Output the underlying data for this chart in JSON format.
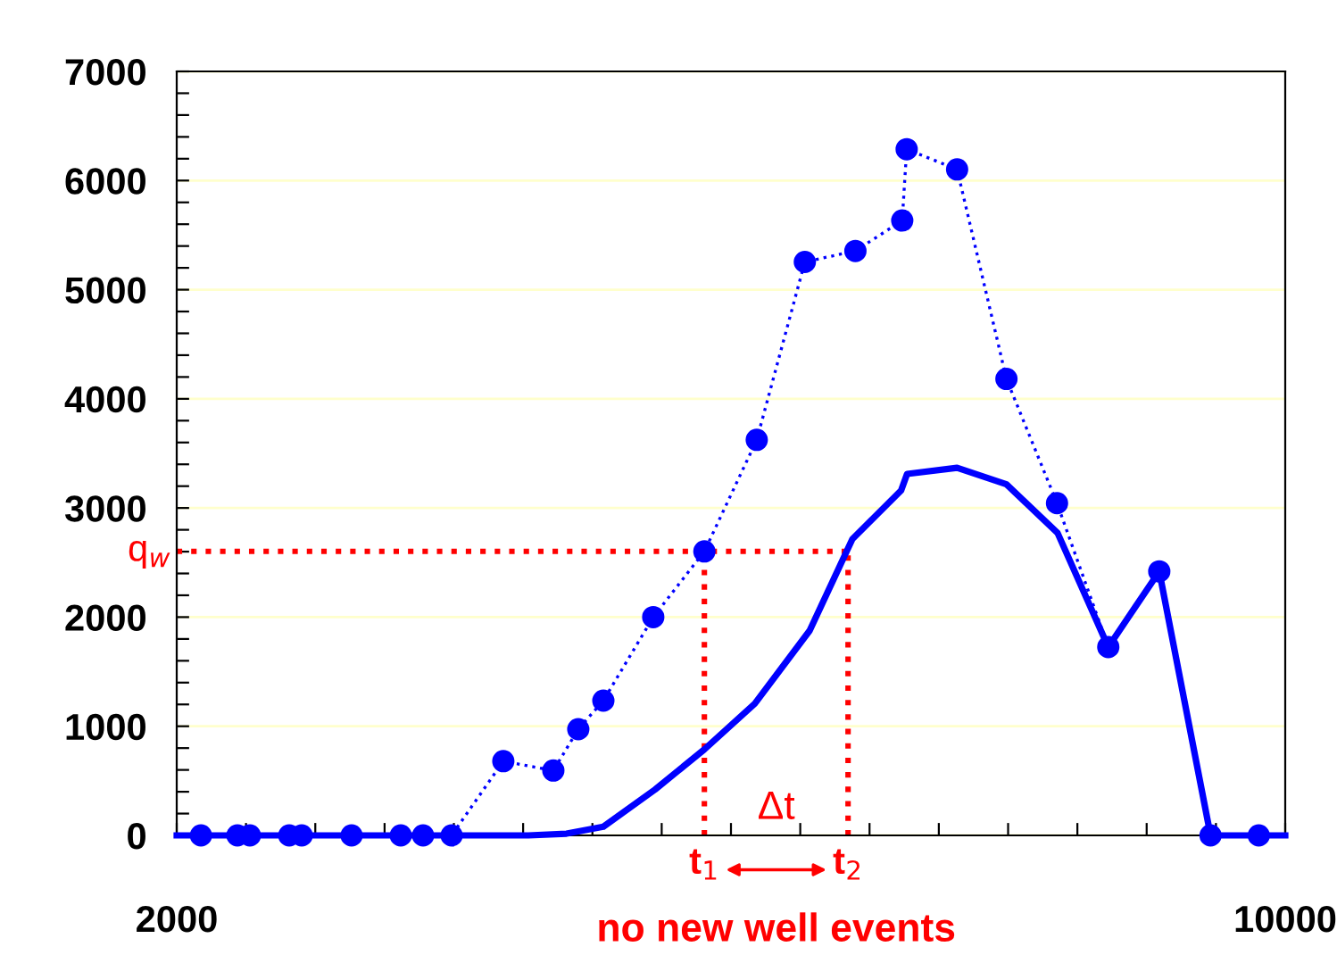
{
  "chart_data": {
    "type": "line",
    "series": [
      {
        "color": "#0000ff",
        "line_style": "dotted",
        "marker": "circle",
        "x": [
          2175,
          2438,
          2528,
          2812,
          2902,
          3262,
          3617,
          3778,
          3984,
          4357,
          4718,
          4898,
          5079,
          5439,
          5808,
          6186,
          6533,
          6898,
          7236,
          7268,
          7632,
          7988,
          8353,
          8723,
          9091,
          9461,
          9809
        ],
        "values": [
          0,
          0,
          0,
          0,
          0,
          0,
          0,
          0,
          0,
          680,
          594,
          973,
          1235,
          2000,
          2602,
          3624,
          5254,
          5355,
          5634,
          6287,
          6102,
          4182,
          3044,
          1726,
          2419,
          0,
          0
        ]
      },
      {
        "color": "#0000ff",
        "line_style": "solid",
        "marker": "none",
        "x": [
          2000,
          4538,
          4813,
          5079,
          5452,
          5808,
          6172,
          6568,
          6876,
          7228,
          7271,
          7632,
          7988,
          8357,
          8723,
          9091,
          9461,
          10000
        ],
        "values": [
          0,
          0,
          16,
          80,
          420,
          788,
          1207,
          1877,
          2715,
          3161,
          3312,
          3368,
          3217,
          2771,
          1726,
          2419,
          0,
          0
        ]
      }
    ],
    "xlim": [
      2000,
      10000
    ],
    "xticks": [
      2000,
      {
        "value": 2500,
        "label": null
      },
      {
        "value": 3000,
        "label": null
      },
      {
        "value": 3500,
        "label": null
      },
      {
        "value": 4000,
        "label": null
      },
      {
        "value": 4500,
        "label": null
      },
      {
        "value": 5000,
        "label": null
      },
      {
        "value": 5500,
        "label": null
      },
      {
        "value": 6000,
        "label": null
      },
      {
        "value": 6500,
        "label": null
      },
      {
        "value": 7000,
        "label": null
      },
      {
        "value": 7500,
        "label": null
      },
      {
        "value": 8000,
        "label": null
      },
      {
        "value": 8500,
        "label": null
      },
      {
        "value": 9000,
        "label": null
      },
      {
        "value": 9500,
        "label": null
      },
      10000
    ],
    "ylim": [
      0,
      7000
    ],
    "yticks": [
      0,
      {
        "value": 200,
        "label": null
      },
      {
        "value": 400,
        "label": null
      },
      {
        "value": 600,
        "label": null
      },
      {
        "value": 800,
        "label": null
      },
      1000,
      {
        "value": 1200,
        "label": null
      },
      {
        "value": 1400,
        "label": null
      },
      {
        "value": 1600,
        "label": null
      },
      {
        "value": 1800,
        "label": null
      },
      2000,
      {
        "value": 2200,
        "label": null
      },
      {
        "value": 2400,
        "label": null
      },
      {
        "value": 2600,
        "label": null
      },
      {
        "value": 2800,
        "label": null
      },
      3000,
      {
        "value": 3200,
        "label": null
      },
      {
        "value": 3400,
        "label": null
      },
      {
        "value": 3600,
        "label": null
      },
      {
        "value": 3800,
        "label": null
      },
      4000,
      {
        "value": 4200,
        "label": null
      },
      {
        "value": 4400,
        "label": null
      },
      {
        "value": 4600,
        "label": null
      },
      {
        "value": 4800,
        "label": null
      },
      5000,
      {
        "value": 5200,
        "label": null
      },
      {
        "value": 5400,
        "label": null
      },
      {
        "value": 5600,
        "label": null
      },
      {
        "value": 5800,
        "label": null
      },
      6000,
      {
        "value": 6200,
        "label": null
      },
      {
        "value": 6400,
        "label": null
      },
      {
        "value": 6600,
        "label": null
      },
      {
        "value": 6800,
        "label": null
      },
      7000
    ],
    "grid": "y",
    "ref_lines": [
      {
        "axis": "y",
        "value": 2602,
        "label": "q$_{w}$",
        "color": "#ff0000",
        "line_style": "dotted"
      },
      {
        "axis": "x",
        "value": 5808,
        "label": "t$_{1}$",
        "color": "#ff0000",
        "line_style": "dotted"
      },
      {
        "axis": "x",
        "value": 6845,
        "label": "t$_{2}$",
        "color": "#ff0000",
        "line_style": "dotted"
      }
    ],
    "annotations": [
      "Δt",
      "no new well events"
    ]
  }
}
